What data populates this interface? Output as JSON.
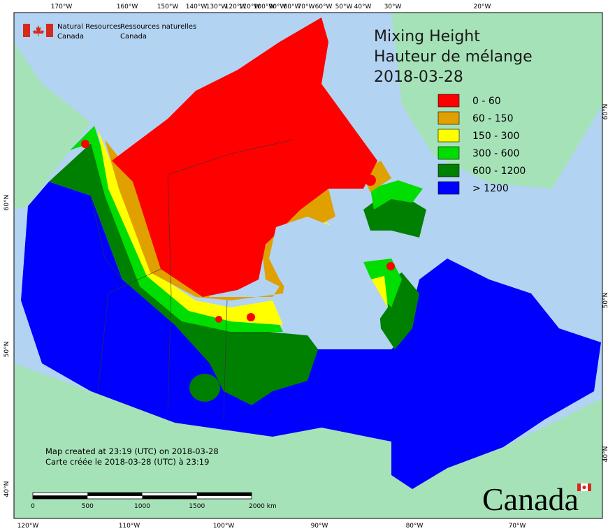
{
  "header": {
    "agency_en": [
      "Natural Resources",
      "Canada"
    ],
    "agency_fr": [
      "Ressources naturelles",
      "Canada"
    ]
  },
  "title": [
    "Mixing Height",
    "Hauteur de mélange",
    "2018-03-28"
  ],
  "legend": [
    {
      "label": "0 - 60",
      "color": "#ff0000"
    },
    {
      "label": "60 - 150",
      "color": "#e0a000"
    },
    {
      "label": "150 - 300",
      "color": "#ffff00"
    },
    {
      "label": "300 - 600",
      "color": "#00dd00"
    },
    {
      "label": "600 - 1200",
      "color": "#008000"
    },
    {
      "label": "> 1200",
      "color": "#0000ff"
    }
  ],
  "graticule": {
    "top": [
      "170°W",
      "160°W",
      "150°W",
      "140°W",
      "130°W",
      "120°W",
      "110°W",
      "100°W",
      "90°W",
      "80°W",
      "70°W",
      "60°W",
      "50°W",
      "40°W",
      "30°W",
      "20°W"
    ],
    "bottom": [
      "120°W",
      "110°W",
      "100°W",
      "90°W",
      "80°W",
      "70°W"
    ],
    "left": [
      "60°N",
      "50°N",
      "40°N"
    ],
    "right": [
      "60°N",
      "50°N",
      "40°N"
    ]
  },
  "footer": [
    "Map created at 23:19 (UTC) on 2018-03-28",
    "Carte créée le 2018-03-28 (UTC) à 23:19"
  ],
  "scale_bar": [
    "0",
    "500",
    "1000",
    "1500",
    "2000 km"
  ],
  "wordmark": "Canada"
}
